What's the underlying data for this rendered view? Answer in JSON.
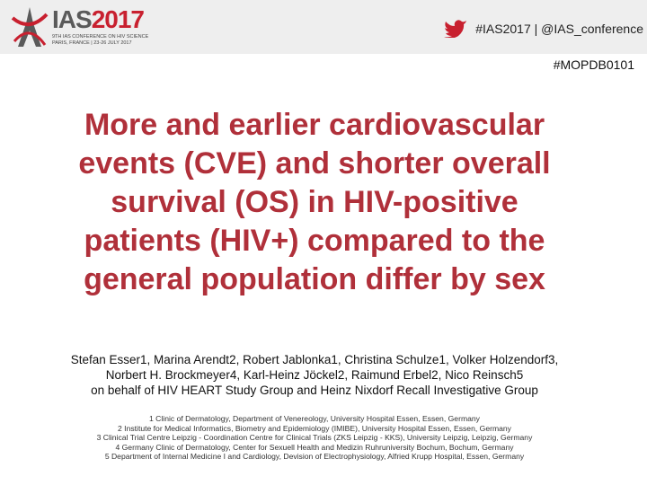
{
  "header": {
    "logo": {
      "name": "IAS",
      "year": "2017"
    },
    "logo_subtitle": [
      "9TH IAS CONFERENCE ON HIV SCIENCE",
      "PARIS, FRANCE | 23-26 JULY 2017"
    ],
    "social": "#IAS2017 | @IAS_conference"
  },
  "session_code": "#MOPDB0101",
  "title_lines": [
    "More and earlier cardiovascular",
    "events (CVE) and shorter overall",
    "survival (OS) in HIV-positive",
    "patients (HIV+) compared to the",
    "general population differ by sex"
  ],
  "authors": [
    "Stefan Esser1, Marina Arendt2, Robert Jablonka1, Christina Schulze1, Volker Holzendorf3,",
    "Norbert H. Brockmeyer4, Karl-Heinz Jöckel2, Raimund Erbel2, Nico Reinsch5",
    "on behalf of HIV HEART Study Group and Heinz Nixdorf Recall Investigative Group"
  ],
  "affiliations": [
    "1 Clinic of Dermatology, Department of Venereology, University Hospital Essen, Essen, Germany",
    "2 Institute for Medical Informatics, Biometry and Epidemiology (IMIBE), University Hospital Essen, Essen, Germany",
    "3 Clinical Trial Centre Leipzig - Coordination Centre for Clinical Trials (ZKS Leipzig - KKS), University Leipzig, Leipzig, Germany",
    "4 Germany Clinic of Dermatology, Center for Sexuell Health and Medizin Ruhruniversity Bochum, Bochum, Germany",
    "5 Department of Internal Medicine I and Cardiology, Devision of Electrophysiology, Alfried Krupp Hospital, Essen, Germany"
  ]
}
